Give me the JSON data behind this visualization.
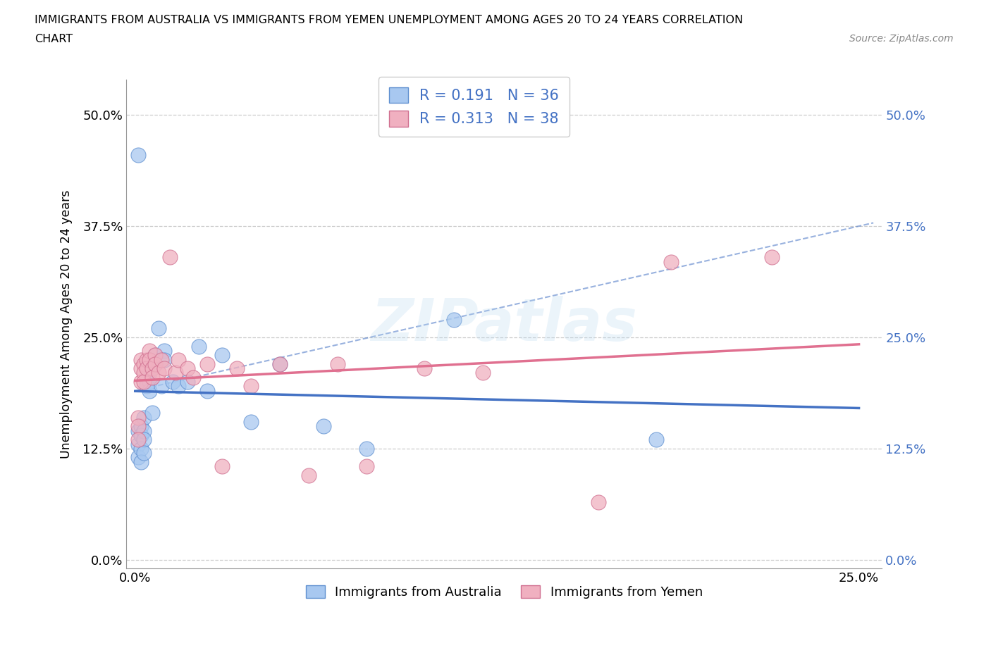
{
  "title_line1": "IMMIGRANTS FROM AUSTRALIA VS IMMIGRANTS FROM YEMEN UNEMPLOYMENT AMONG AGES 20 TO 24 YEARS CORRELATION",
  "title_line2": "CHART",
  "source": "Source: ZipAtlas.com",
  "ylabel": "Unemployment Among Ages 20 to 24 years",
  "color_australia": "#a8c8f0",
  "color_australia_edge": "#6090d0",
  "color_yemen": "#f0b0c0",
  "color_yemen_edge": "#d07090",
  "color_trendline_australia": "#4472c4",
  "color_trendline_yemen": "#e07090",
  "R_australia": "0.191",
  "N_australia": "36",
  "R_yemen": "0.313",
  "N_yemen": "38",
  "xlim": [
    -0.003,
    0.258
  ],
  "ylim": [
    -0.01,
    0.54
  ],
  "ytick_positions": [
    0.0,
    0.125,
    0.25,
    0.375,
    0.5
  ],
  "ytick_labels": [
    "0.0%",
    "12.5%",
    "25.0%",
    "37.5%",
    "50.0%"
  ],
  "xtick_positions": [
    0.0,
    0.05,
    0.1,
    0.15,
    0.2,
    0.25
  ],
  "xtick_labels": [
    "0.0%",
    "",
    "",
    "",
    "",
    "25.0%"
  ],
  "watermark": "ZIPatlas",
  "legend_bottom": [
    "Immigrants from Australia",
    "Immigrants from Yemen"
  ],
  "aus_x": [
    0.001,
    0.001,
    0.001,
    0.001,
    0.002,
    0.002,
    0.002,
    0.002,
    0.003,
    0.003,
    0.003,
    0.003,
    0.004,
    0.004,
    0.005,
    0.005,
    0.005,
    0.006,
    0.007,
    0.007,
    0.008,
    0.009,
    0.01,
    0.01,
    0.013,
    0.015,
    0.018,
    0.022,
    0.025,
    0.03,
    0.04,
    0.05,
    0.065,
    0.08,
    0.11,
    0.18
  ],
  "aus_y": [
    0.455,
    0.145,
    0.13,
    0.115,
    0.15,
    0.14,
    0.125,
    0.11,
    0.16,
    0.145,
    0.135,
    0.12,
    0.2,
    0.195,
    0.21,
    0.2,
    0.19,
    0.165,
    0.23,
    0.22,
    0.26,
    0.195,
    0.235,
    0.225,
    0.2,
    0.195,
    0.2,
    0.24,
    0.19,
    0.23,
    0.155,
    0.22,
    0.15,
    0.125,
    0.27,
    0.135
  ],
  "yem_x": [
    0.001,
    0.001,
    0.001,
    0.002,
    0.002,
    0.002,
    0.003,
    0.003,
    0.003,
    0.004,
    0.004,
    0.005,
    0.005,
    0.006,
    0.006,
    0.007,
    0.007,
    0.008,
    0.009,
    0.01,
    0.012,
    0.014,
    0.015,
    0.018,
    0.02,
    0.025,
    0.03,
    0.035,
    0.04,
    0.05,
    0.06,
    0.07,
    0.08,
    0.1,
    0.12,
    0.16,
    0.185,
    0.22
  ],
  "yem_y": [
    0.16,
    0.15,
    0.135,
    0.225,
    0.215,
    0.2,
    0.22,
    0.21,
    0.2,
    0.225,
    0.215,
    0.235,
    0.225,
    0.215,
    0.205,
    0.23,
    0.22,
    0.21,
    0.225,
    0.215,
    0.34,
    0.21,
    0.225,
    0.215,
    0.205,
    0.22,
    0.105,
    0.215,
    0.195,
    0.22,
    0.095,
    0.22,
    0.105,
    0.215,
    0.21,
    0.065,
    0.335,
    0.34
  ]
}
